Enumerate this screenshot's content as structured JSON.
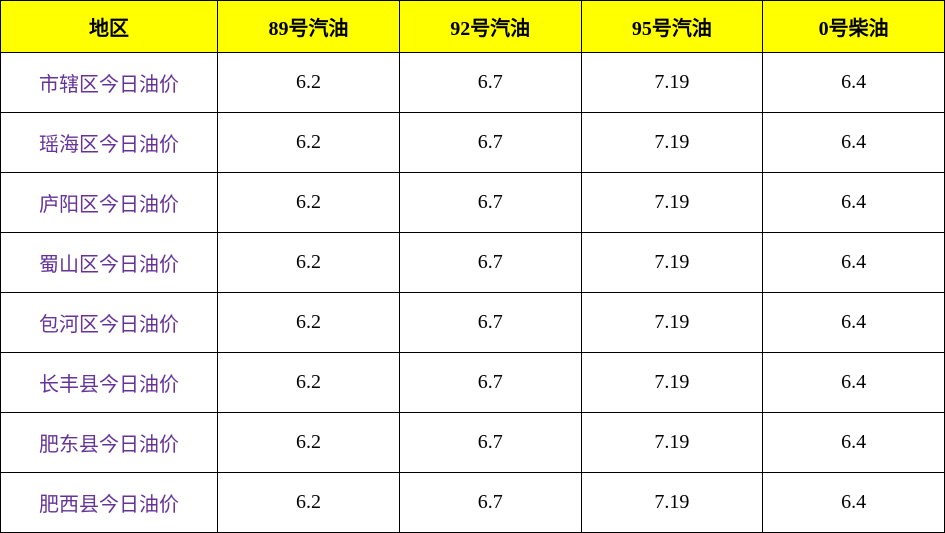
{
  "table": {
    "columns": [
      "地区",
      "89号汽油",
      "92号汽油",
      "95号汽油",
      "0号柴油"
    ],
    "rows": [
      {
        "region": "市辖区今日油价",
        "p89": "6.2",
        "p92": "6.7",
        "p95": "7.19",
        "p0": "6.4"
      },
      {
        "region": "瑶海区今日油价",
        "p89": "6.2",
        "p92": "6.7",
        "p95": "7.19",
        "p0": "6.4"
      },
      {
        "region": "庐阳区今日油价",
        "p89": "6.2",
        "p92": "6.7",
        "p95": "7.19",
        "p0": "6.4"
      },
      {
        "region": "蜀山区今日油价",
        "p89": "6.2",
        "p92": "6.7",
        "p95": "7.19",
        "p0": "6.4"
      },
      {
        "region": "包河区今日油价",
        "p89": "6.2",
        "p92": "6.7",
        "p95": "7.19",
        "p0": "6.4"
      },
      {
        "region": "长丰县今日油价",
        "p89": "6.2",
        "p92": "6.7",
        "p95": "7.19",
        "p0": "6.4"
      },
      {
        "region": "肥东县今日油价",
        "p89": "6.2",
        "p92": "6.7",
        "p95": "7.19",
        "p0": "6.4"
      },
      {
        "region": "肥西县今日油价",
        "p89": "6.2",
        "p92": "6.7",
        "p95": "7.19",
        "p0": "6.4"
      }
    ],
    "styling": {
      "header_bg": "#ffff00",
      "header_text_color": "#000000",
      "border_color": "#000000",
      "region_text_color": "#663399",
      "cell_text_color": "#000000",
      "font_family": "SimSun",
      "header_font_size": 20,
      "cell_font_size": 20,
      "header_font_weight": "bold"
    }
  }
}
